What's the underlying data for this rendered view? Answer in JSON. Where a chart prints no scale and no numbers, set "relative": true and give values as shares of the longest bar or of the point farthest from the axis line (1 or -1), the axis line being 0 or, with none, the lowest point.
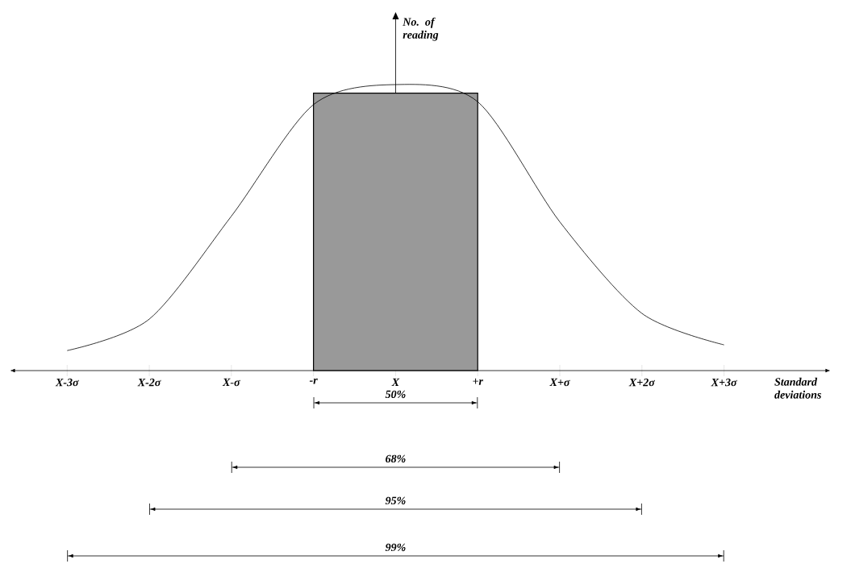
{
  "chart_data": {
    "type": "line",
    "relative": true,
    "xlabel": "Standard deviations",
    "categories": [
      "X-3σ",
      "X-2σ",
      "X-σ",
      "-r",
      "X",
      "+r",
      "X+σ",
      "X+2σ",
      "X+3σ"
    ],
    "series": [
      {
        "color": "#000000",
        "values": [
          0.07,
          0.18,
          0.54,
          0.93,
          1,
          0.94,
          0.52,
          0.2,
          0.09
        ]
      },
      {
        "type": "bar",
        "color": "#999999",
        "values": [
          null,
          null,
          null,
          null,
          0.97,
          null,
          null,
          null,
          null
        ]
      }
    ],
    "marker": "none",
    "line_style": "solid",
    "annotations": [
      "No. of reading",
      "50%",
      "68%",
      "95%",
      "99%"
    ]
  }
}
